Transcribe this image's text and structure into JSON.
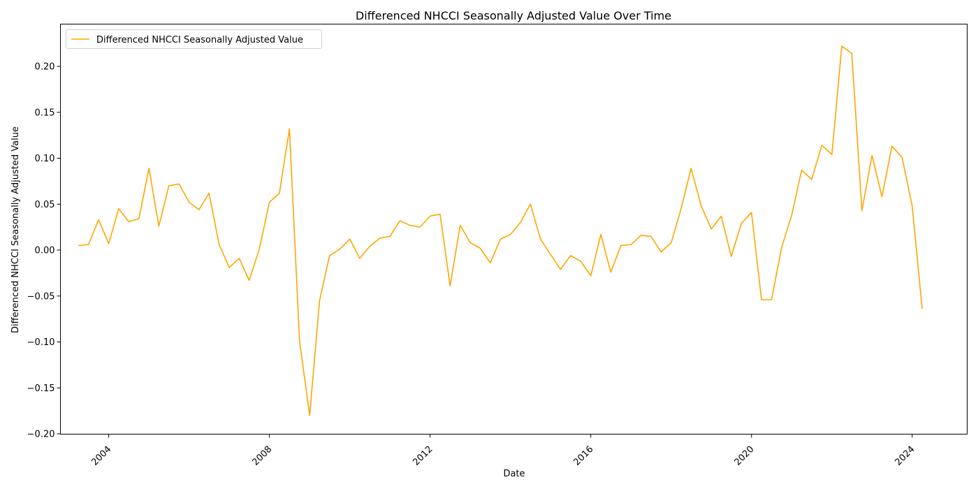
{
  "chart_data": {
    "type": "line",
    "title": "Differenced NHCCI Seasonally Adjusted Value Over Time",
    "xlabel": "Date",
    "ylabel": "Differenced NHCCI Seasonally Adjusted Value",
    "x_range": [
      "2002-10-19",
      "2025-05-15"
    ],
    "ylim": [
      -0.2,
      0.2
    ],
    "x_ticks": [
      "2004",
      "2008",
      "2012",
      "2016",
      "2020",
      "2024"
    ],
    "y_ticks": [
      "−0.20",
      "−0.15",
      "−0.10",
      "−0.05",
      "0.00",
      "0.05",
      "0.10",
      "0.15",
      "0.20"
    ],
    "grid": false,
    "legend_position": "top-left",
    "series": [
      {
        "name": "Differenced NHCCI Seasonally Adjusted Value",
        "color": "#FFA500",
        "x": [
          "2003-04-01",
          "2003-07-01",
          "2003-10-01",
          "2004-01-01",
          "2004-04-01",
          "2004-07-01",
          "2004-10-01",
          "2005-01-01",
          "2005-04-01",
          "2005-07-01",
          "2005-10-01",
          "2006-01-01",
          "2006-04-01",
          "2006-07-01",
          "2006-10-01",
          "2007-01-01",
          "2007-04-01",
          "2007-07-01",
          "2007-10-01",
          "2008-01-01",
          "2008-04-01",
          "2008-07-01",
          "2008-10-01",
          "2009-01-01",
          "2009-04-01",
          "2009-07-01",
          "2009-10-01",
          "2010-01-01",
          "2010-04-01",
          "2010-07-01",
          "2010-10-01",
          "2011-01-01",
          "2011-04-01",
          "2011-07-01",
          "2011-10-01",
          "2012-01-01",
          "2012-04-01",
          "2012-07-01",
          "2012-10-01",
          "2013-01-01",
          "2013-04-01",
          "2013-07-01",
          "2013-10-01",
          "2014-01-01",
          "2014-04-01",
          "2014-07-01",
          "2014-10-01",
          "2015-01-01",
          "2015-04-01",
          "2015-07-01",
          "2015-10-01",
          "2016-01-01",
          "2016-04-01",
          "2016-07-01",
          "2016-10-01",
          "2017-01-01",
          "2017-04-01",
          "2017-07-01",
          "2017-10-01",
          "2018-01-01",
          "2018-04-01",
          "2018-07-01",
          "2018-10-01",
          "2019-01-01",
          "2019-04-01",
          "2019-07-01",
          "2019-10-01",
          "2020-01-01",
          "2020-04-01",
          "2020-07-01",
          "2020-10-01",
          "2021-01-01",
          "2021-04-01",
          "2021-07-01",
          "2021-10-01",
          "2022-01-01",
          "2022-04-01",
          "2022-07-01",
          "2022-10-01",
          "2023-01-01",
          "2023-04-01",
          "2023-07-01",
          "2023-10-01",
          "2024-01-01",
          "2024-04-01"
        ],
        "values": [
          0.005,
          0.006,
          0.033,
          0.007,
          0.045,
          0.031,
          0.034,
          0.089,
          0.026,
          0.07,
          0.072,
          0.052,
          0.044,
          0.062,
          0.006,
          -0.019,
          -0.009,
          -0.033,
          0.001,
          0.052,
          0.062,
          0.132,
          -0.099,
          -0.18,
          -0.055,
          -0.006,
          0.001,
          0.012,
          -0.009,
          0.004,
          0.013,
          0.015,
          0.032,
          0.027,
          0.025,
          0.037,
          0.039,
          -0.039,
          0.027,
          0.008,
          0.002,
          -0.014,
          0.012,
          0.017,
          0.03,
          0.05,
          0.012,
          -0.005,
          -0.021,
          -0.006,
          -0.012,
          -0.028,
          0.017,
          -0.024,
          0.005,
          0.006,
          0.016,
          0.015,
          -0.002,
          0.008,
          0.045,
          0.089,
          0.048,
          0.023,
          0.037,
          -0.007,
          0.029,
          0.041,
          -0.054,
          -0.054,
          0.003,
          0.038,
          0.087,
          0.077,
          0.114,
          0.104,
          0.222,
          0.214,
          0.043,
          0.103,
          0.058,
          0.113,
          0.101,
          0.048,
          -0.064
        ]
      }
    ]
  }
}
